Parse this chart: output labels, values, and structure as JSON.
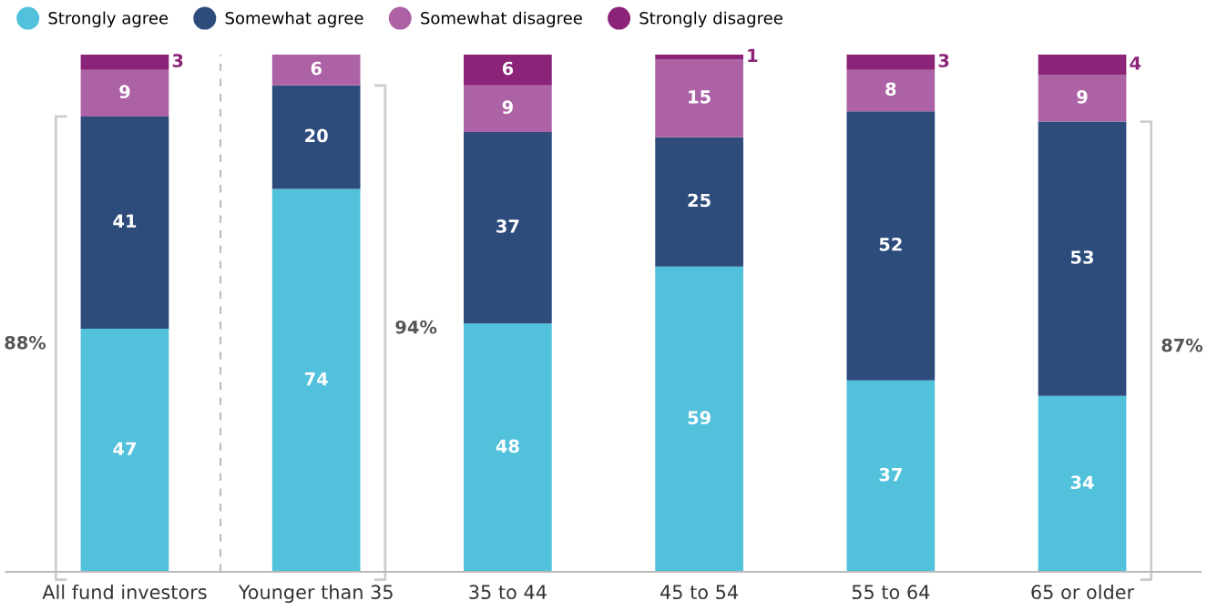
{
  "chart_data": {
    "type": "bar",
    "stacked": true,
    "data_labels": true,
    "legend": "top left",
    "grid": false,
    "categories": [
      "All fund investors",
      "Younger than 35",
      "35 to 44",
      "45 to 54",
      "55 to 64",
      "65 or older"
    ],
    "ylim": [
      0,
      100
    ],
    "tick_labels": "x",
    "series": [
      {
        "name": "Strongly agree",
        "color": "#52c1dc",
        "values": [
          47,
          74,
          48,
          59,
          37,
          34
        ]
      },
      {
        "name": "Somewhat agree",
        "color": "#2d4c7c",
        "values": [
          41,
          20,
          37,
          25,
          52,
          53
        ]
      },
      {
        "name": "Somewhat disagree",
        "color": "#ad62a6",
        "values": [
          9,
          6,
          9,
          15,
          8,
          9
        ]
      },
      {
        "name": "Strongly disagree",
        "color": "#8b2379",
        "values": [
          3,
          null,
          6,
          1,
          3,
          4
        ]
      }
    ],
    "annotations": [
      "88%",
      "94%",
      "87%"
    ]
  }
}
